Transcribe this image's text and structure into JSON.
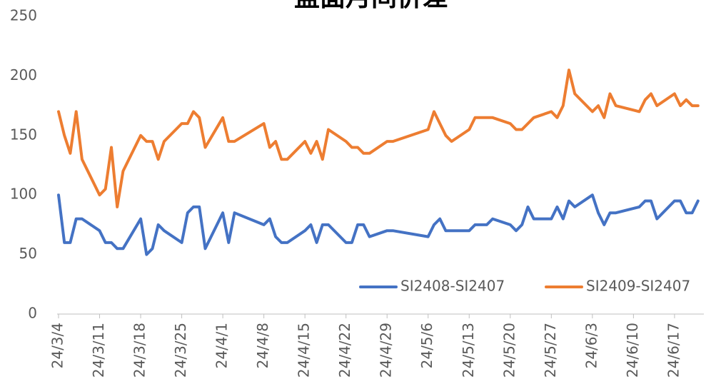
{
  "chart_data": {
    "type": "line",
    "title": "盘面月间价差",
    "x": [
      "24/3/4",
      "24/3/5",
      "24/3/6",
      "24/3/7",
      "24/3/8",
      "24/3/11",
      "24/3/12",
      "24/3/13",
      "24/3/14",
      "24/3/15",
      "24/3/18",
      "24/3/19",
      "24/3/20",
      "24/3/21",
      "24/3/22",
      "24/3/25",
      "24/3/26",
      "24/3/27",
      "24/3/28",
      "24/3/29",
      "24/4/1",
      "24/4/2",
      "24/4/3",
      "24/4/8",
      "24/4/9",
      "24/4/10",
      "24/4/11",
      "24/4/12",
      "24/4/15",
      "24/4/16",
      "24/4/17",
      "24/4/18",
      "24/4/19",
      "24/4/22",
      "24/4/23",
      "24/4/24",
      "24/4/25",
      "24/4/26",
      "24/4/29",
      "24/4/30",
      "24/5/6",
      "24/5/7",
      "24/5/8",
      "24/5/9",
      "24/5/10",
      "24/5/13",
      "24/5/14",
      "24/5/15",
      "24/5/16",
      "24/5/17",
      "24/5/20",
      "24/5/21",
      "24/5/22",
      "24/5/23",
      "24/5/24",
      "24/5/27",
      "24/5/28",
      "24/5/29",
      "24/5/30",
      "24/5/31",
      "24/6/3",
      "24/6/4",
      "24/6/5",
      "24/6/6",
      "24/6/7",
      "24/6/11",
      "24/6/12",
      "24/6/13",
      "24/6/14",
      "24/6/17",
      "24/6/18",
      "24/6/19",
      "24/6/20",
      "24/6/21"
    ],
    "series": [
      {
        "name": "SI2408-SI2407",
        "color": "#4472c4",
        "values": [
          100,
          60,
          60,
          80,
          80,
          70,
          60,
          60,
          55,
          55,
          80,
          50,
          55,
          75,
          70,
          60,
          85,
          90,
          90,
          55,
          85,
          60,
          85,
          75,
          80,
          65,
          60,
          60,
          70,
          75,
          60,
          75,
          75,
          60,
          60,
          75,
          75,
          65,
          70,
          70,
          65,
          75,
          80,
          70,
          70,
          70,
          75,
          75,
          75,
          80,
          75,
          70,
          75,
          90,
          80,
          80,
          90,
          80,
          95,
          90,
          100,
          85,
          75,
          85,
          85,
          90,
          95,
          95,
          80,
          95,
          95,
          85,
          85,
          95
        ]
      },
      {
        "name": "SI2409-SI2407",
        "color": "#ed7d31",
        "values": [
          170,
          150,
          135,
          170,
          130,
          100,
          105,
          140,
          90,
          120,
          150,
          145,
          145,
          130,
          145,
          160,
          160,
          170,
          165,
          140,
          165,
          145,
          145,
          160,
          140,
          145,
          130,
          130,
          145,
          135,
          145,
          130,
          155,
          145,
          140,
          140,
          135,
          135,
          145,
          145,
          155,
          170,
          160,
          150,
          145,
          155,
          165,
          165,
          165,
          165,
          160,
          155,
          155,
          160,
          165,
          170,
          165,
          175,
          205,
          185,
          170,
          175,
          165,
          185,
          175,
          170,
          180,
          185,
          175,
          185,
          175,
          180,
          175,
          175
        ]
      }
    ],
    "xlim": [
      "24/3/4",
      "24/6/22"
    ],
    "xticks": [
      "24/3/4",
      "24/3/11",
      "24/3/18",
      "24/3/25",
      "24/4/1",
      "24/4/8",
      "24/4/15",
      "24/4/22",
      "24/4/29",
      "24/5/6",
      "24/5/13",
      "24/5/20",
      "24/5/27",
      "24/6/3",
      "24/6/10",
      "24/6/17"
    ],
    "ylim": [
      0,
      250
    ],
    "yticks": [
      0,
      50,
      100,
      150,
      200,
      250
    ],
    "grid": false,
    "legend": "lower right"
  }
}
